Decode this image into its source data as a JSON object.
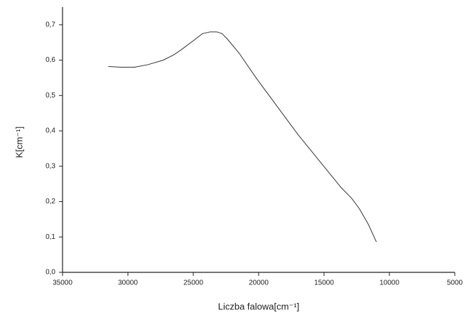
{
  "chart_data": {
    "type": "line",
    "x_label": "Liczba falowa[cm⁻¹]",
    "y_label": "K[cm⁻¹]",
    "x": [
      31500,
      30500,
      29500,
      28500,
      27300,
      26500,
      25900,
      25000,
      24300,
      23700,
      23200,
      22800,
      22400,
      21500,
      20200,
      19000,
      18000,
      17000,
      15900,
      14800,
      13700,
      12900,
      12300,
      11600,
      11000
    ],
    "series": [
      {
        "color": "#333333",
        "values": [
          0.582,
          0.58,
          0.58,
          0.587,
          0.6,
          0.615,
          0.63,
          0.655,
          0.675,
          0.68,
          0.68,
          0.675,
          0.66,
          0.62,
          0.55,
          0.49,
          0.44,
          0.39,
          0.34,
          0.29,
          0.24,
          0.21,
          0.18,
          0.135,
          0.086
        ]
      }
    ],
    "xlim": [
      35000,
      5000
    ],
    "xticks": [
      35000,
      30000,
      25000,
      20000,
      15000,
      10000,
      5000
    ],
    "ylim": [
      0,
      0.75
    ],
    "yticks": [
      {
        "value": 0,
        "label": "0,0"
      },
      {
        "value": 0.1,
        "label": "0,1"
      },
      {
        "value": 0.2,
        "label": "0,2"
      },
      {
        "value": 0.3,
        "label": "0,3"
      },
      {
        "value": 0.4,
        "label": "0,4"
      },
      {
        "value": 0.5,
        "label": "0,5"
      },
      {
        "value": 0.6,
        "label": "0,6"
      },
      {
        "value": 0.7,
        "label": "0,7"
      }
    ]
  }
}
